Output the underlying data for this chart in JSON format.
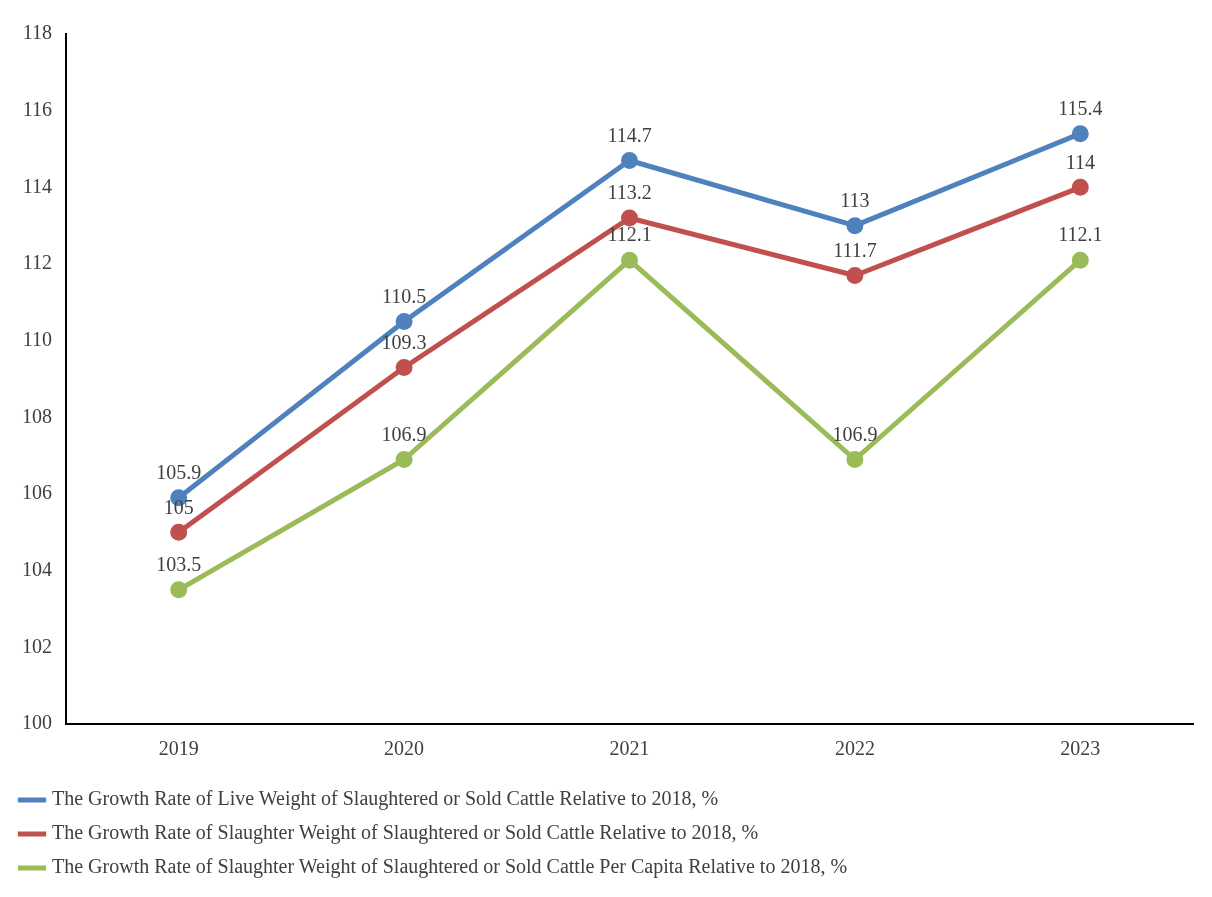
{
  "chart_data": {
    "type": "line",
    "categories": [
      "2019",
      "2020",
      "2021",
      "2022",
      "2023"
    ],
    "series": [
      {
        "name": "The Growth Rate of Live Weight of Slaughtered or Sold Cattle Relative to 2018, %",
        "color": "#4f81bd",
        "values": [
          105.9,
          110.5,
          114.7,
          113,
          115.4
        ]
      },
      {
        "name": "The Growth Rate of Slaughter Weight of Slaughtered or Sold Cattle Relative to 2018, %",
        "color": "#c0504d",
        "values": [
          105,
          109.3,
          113.2,
          111.7,
          114
        ]
      },
      {
        "name": "The Growth Rate of Slaughter Weight of Slaughtered or Sold Cattle Per Capita Relative to 2018, %",
        "color": "#9bbb59",
        "values": [
          103.5,
          106.9,
          112.1,
          106.9,
          112.1
        ]
      }
    ],
    "ylim": [
      100,
      118
    ],
    "yticks": [
      100,
      102,
      104,
      106,
      108,
      110,
      112,
      114,
      116,
      118
    ],
    "grid": false,
    "legend": "bottom",
    "marker": "circle",
    "line_style": "solid",
    "data_labels": true
  }
}
